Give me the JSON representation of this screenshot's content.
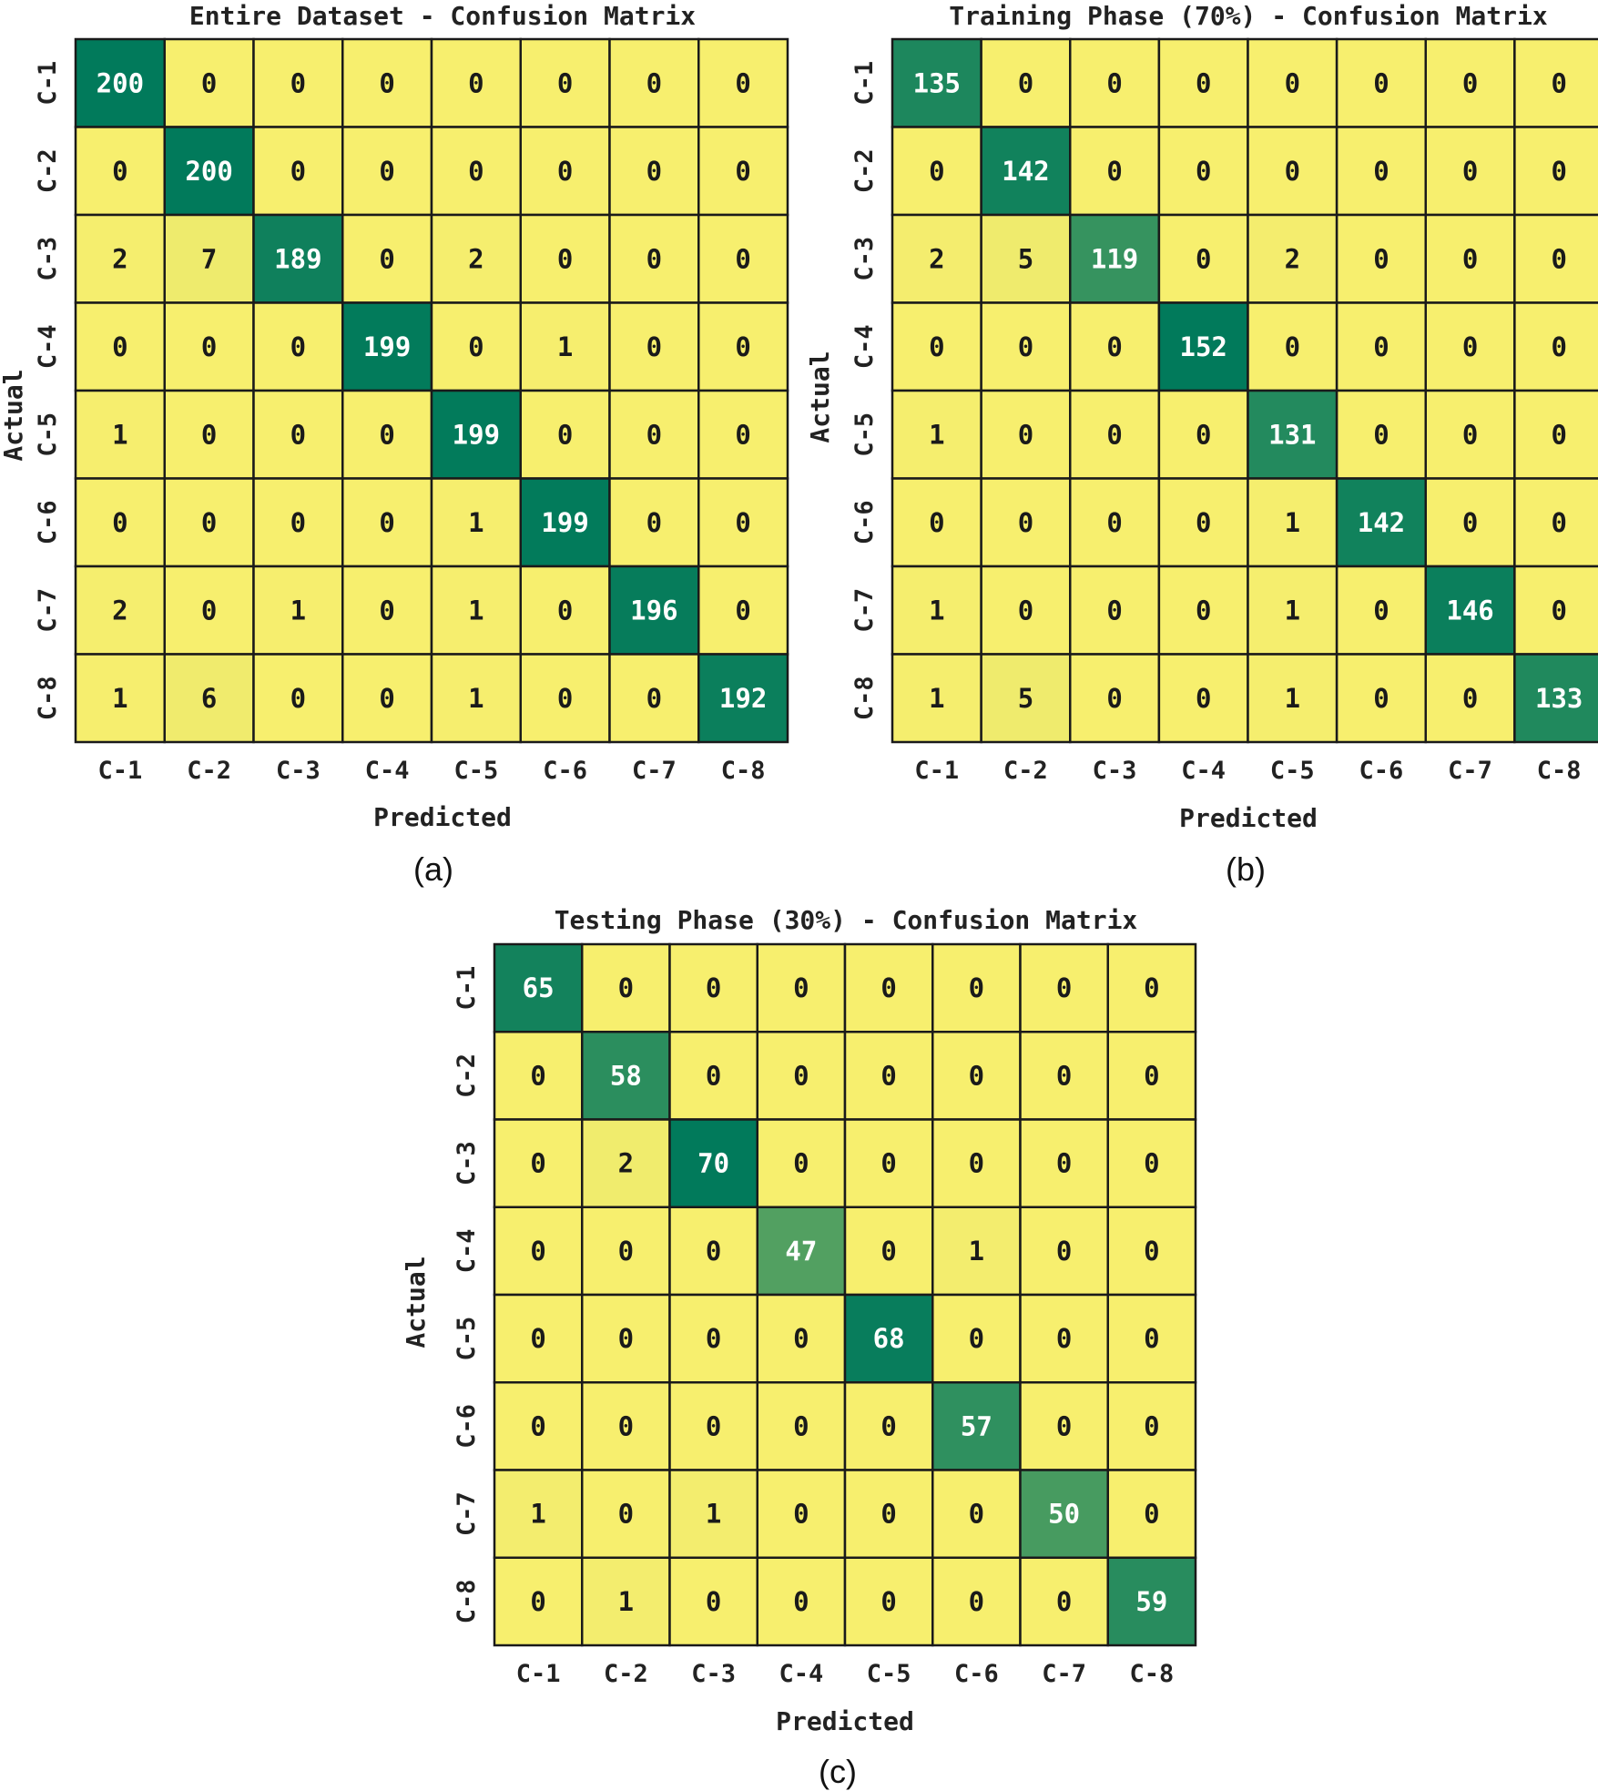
{
  "chart_data": [
    {
      "type": "heatmap",
      "panel": "(a)",
      "title": "Entire Dataset - Confusion Matrix",
      "xlabel": "Predicted",
      "ylabel": "Actual",
      "x_ticks": [
        "C-1",
        "C-2",
        "C-3",
        "C-4",
        "C-5",
        "C-6",
        "C-7",
        "C-8"
      ],
      "y_ticks": [
        "C-1",
        "C-2",
        "C-3",
        "C-4",
        "C-5",
        "C-6",
        "C-7",
        "C-8"
      ],
      "matrix": [
        [
          200,
          0,
          0,
          0,
          0,
          0,
          0,
          0
        ],
        [
          0,
          200,
          0,
          0,
          0,
          0,
          0,
          0
        ],
        [
          2,
          7,
          189,
          0,
          2,
          0,
          0,
          0
        ],
        [
          0,
          0,
          0,
          199,
          0,
          1,
          0,
          0
        ],
        [
          1,
          0,
          0,
          0,
          199,
          0,
          0,
          0
        ],
        [
          0,
          0,
          0,
          0,
          1,
          199,
          0,
          0
        ],
        [
          2,
          0,
          1,
          0,
          1,
          0,
          196,
          0
        ],
        [
          1,
          6,
          0,
          0,
          1,
          0,
          0,
          192
        ]
      ]
    },
    {
      "type": "heatmap",
      "panel": "(b)",
      "title": "Training Phase (70%) - Confusion Matrix",
      "xlabel": "Predicted",
      "ylabel": "Actual",
      "x_ticks": [
        "C-1",
        "C-2",
        "C-3",
        "C-4",
        "C-5",
        "C-6",
        "C-7",
        "C-8"
      ],
      "y_ticks": [
        "C-1",
        "C-2",
        "C-3",
        "C-4",
        "C-5",
        "C-6",
        "C-7",
        "C-8"
      ],
      "matrix": [
        [
          135,
          0,
          0,
          0,
          0,
          0,
          0,
          0
        ],
        [
          0,
          142,
          0,
          0,
          0,
          0,
          0,
          0
        ],
        [
          2,
          5,
          119,
          0,
          2,
          0,
          0,
          0
        ],
        [
          0,
          0,
          0,
          152,
          0,
          0,
          0,
          0
        ],
        [
          1,
          0,
          0,
          0,
          131,
          0,
          0,
          0
        ],
        [
          0,
          0,
          0,
          0,
          1,
          142,
          0,
          0
        ],
        [
          1,
          0,
          0,
          0,
          1,
          0,
          146,
          0
        ],
        [
          1,
          5,
          0,
          0,
          1,
          0,
          0,
          133
        ]
      ]
    },
    {
      "type": "heatmap",
      "panel": "(c)",
      "title": "Testing Phase (30%) - Confusion Matrix",
      "xlabel": "Predicted",
      "ylabel": "Actual",
      "x_ticks": [
        "C-1",
        "C-2",
        "C-3",
        "C-4",
        "C-5",
        "C-6",
        "C-7",
        "C-8"
      ],
      "y_ticks": [
        "C-1",
        "C-2",
        "C-3",
        "C-4",
        "C-5",
        "C-6",
        "C-7",
        "C-8"
      ],
      "matrix": [
        [
          65,
          0,
          0,
          0,
          0,
          0,
          0,
          0
        ],
        [
          0,
          58,
          0,
          0,
          0,
          0,
          0,
          0
        ],
        [
          0,
          2,
          70,
          0,
          0,
          0,
          0,
          0
        ],
        [
          0,
          0,
          0,
          47,
          0,
          1,
          0,
          0
        ],
        [
          0,
          0,
          0,
          0,
          68,
          0,
          0,
          0
        ],
        [
          0,
          0,
          0,
          0,
          0,
          57,
          0,
          0
        ],
        [
          1,
          0,
          1,
          0,
          0,
          0,
          50,
          0
        ],
        [
          0,
          1,
          0,
          0,
          0,
          0,
          0,
          59
        ]
      ]
    }
  ],
  "colors": {
    "low": "#f7ef6e",
    "high": "#017a5b",
    "grid": "#1a1a1a",
    "text_dark": "#1a1a1a",
    "text_light": "#ffffff"
  }
}
